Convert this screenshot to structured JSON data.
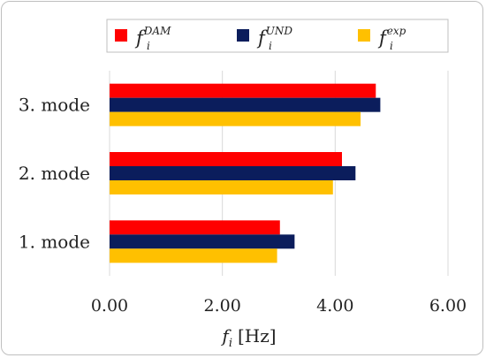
{
  "chart_data": {
    "type": "bar",
    "orientation": "horizontal",
    "categories": [
      "1. mode",
      "2. mode",
      "3. mode"
    ],
    "series": [
      {
        "name": "f_i^DAM",
        "legend_base": "f",
        "legend_sub": "i",
        "legend_sup": "DAM",
        "color": "#ff0000",
        "values": [
          3.02,
          4.12,
          4.72
        ]
      },
      {
        "name": "f_i^UND",
        "legend_base": "f",
        "legend_sub": "i",
        "legend_sup": "UND",
        "color": "#0b1d5c",
        "values": [
          3.28,
          4.36,
          4.8
        ]
      },
      {
        "name": "f_i^exp",
        "legend_base": "f",
        "legend_sub": "i",
        "legend_sup": "exp",
        "color": "#ffc000",
        "values": [
          2.97,
          3.96,
          4.45
        ]
      }
    ],
    "xlim": [
      0,
      6
    ],
    "xticks": [
      "0.00",
      "2.00",
      "4.00",
      "6.00"
    ],
    "xlabel_base": "f",
    "xlabel_sub": "i",
    "xlabel_unit": "[Hz]",
    "grid": true,
    "legend_position": "top"
  }
}
